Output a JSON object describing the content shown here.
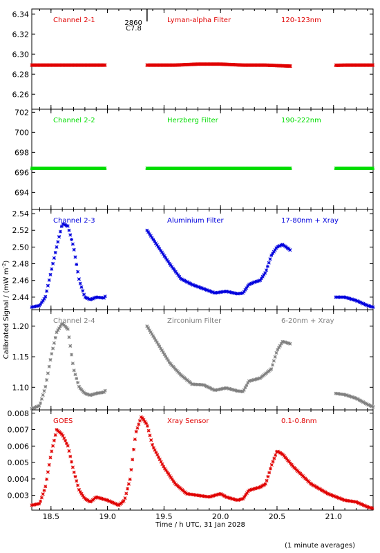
{
  "chart_data": {
    "type": "scatter",
    "x_label": "Time / h UTC, 31 Jan 2028",
    "y_label": "Calibrated Signal / (mW m",
    "y_label_sup": "-2",
    "y_label_end": ")",
    "footnote": "(1 minute averages)",
    "marker_note_1": "2860",
    "marker_note_2": "C7.8",
    "marker_time": 19.35,
    "xlim": [
      18.33,
      21.35
    ],
    "x_ticks": [
      18.5,
      19.0,
      19.5,
      20.0,
      20.5,
      21.0
    ],
    "x_tick_labels": [
      "18.5",
      "19.0",
      "19.5",
      "20.0",
      "20.5",
      "21.0"
    ],
    "panels": [
      {
        "channel": "Channel 2-1",
        "filter": "Lyman-alpha Filter",
        "band": "120-123nm",
        "color": "#e00000",
        "ylim": [
          6.245,
          6.345
        ],
        "y_ticks": [
          6.26,
          6.28,
          6.3,
          6.32,
          6.34
        ],
        "y_tick_labels": [
          "6.26",
          "6.28",
          "6.30",
          "6.32",
          "6.34"
        ],
        "segments": [
          [
            18.33,
            18.98
          ],
          [
            19.35,
            20.62
          ],
          [
            21.02,
            21.35
          ]
        ],
        "points": [
          [
            18.4,
            6.289
          ],
          [
            18.6,
            6.289
          ],
          [
            18.8,
            6.289
          ],
          [
            18.97,
            6.289
          ],
          [
            19.4,
            6.289
          ],
          [
            19.6,
            6.289
          ],
          [
            19.8,
            6.29
          ],
          [
            20.0,
            6.29
          ],
          [
            20.2,
            6.289
          ],
          [
            20.4,
            6.289
          ],
          [
            20.62,
            6.288
          ],
          [
            21.1,
            6.289
          ],
          [
            21.3,
            6.289
          ]
        ]
      },
      {
        "channel": "Channel 2-2",
        "filter": "Herzberg Filter",
        "band": "190-222nm",
        "color": "#00dd00",
        "ylim": [
          692.3,
          702.3
        ],
        "y_ticks": [
          694,
          696,
          698,
          700,
          702
        ],
        "y_tick_labels": [
          "694",
          "696",
          "698",
          "700",
          "702"
        ],
        "segments": [
          [
            18.33,
            18.98
          ],
          [
            19.35,
            20.62
          ],
          [
            21.02,
            21.35
          ]
        ],
        "points": [
          [
            18.4,
            696.4
          ],
          [
            18.7,
            696.4
          ],
          [
            18.97,
            696.4
          ],
          [
            19.4,
            696.4
          ],
          [
            19.8,
            696.4
          ],
          [
            20.2,
            696.4
          ],
          [
            20.62,
            696.4
          ],
          [
            21.1,
            696.4
          ],
          [
            21.3,
            696.4
          ]
        ]
      },
      {
        "channel": "Channel 2-3",
        "filter": "Aluminium Filter",
        "band": "17-80nm + Xray",
        "color": "#0000dd",
        "ylim": [
          2.425,
          2.545
        ],
        "y_ticks": [
          2.44,
          2.46,
          2.48,
          2.5,
          2.52,
          2.54
        ],
        "y_tick_labels": [
          "2.44",
          "2.46",
          "2.48",
          "2.50",
          "2.52",
          "2.54"
        ],
        "segments": [
          [
            18.33,
            18.98
          ],
          [
            19.35,
            20.62
          ],
          [
            21.02,
            21.35
          ]
        ],
        "points": [
          [
            18.33,
            2.428
          ],
          [
            18.4,
            2.43
          ],
          [
            18.45,
            2.44
          ],
          [
            18.5,
            2.47
          ],
          [
            18.55,
            2.5
          ],
          [
            18.6,
            2.528
          ],
          [
            18.65,
            2.525
          ],
          [
            18.7,
            2.5
          ],
          [
            18.75,
            2.46
          ],
          [
            18.8,
            2.44
          ],
          [
            18.85,
            2.437
          ],
          [
            18.9,
            2.44
          ],
          [
            18.97,
            2.439
          ],
          [
            19.35,
            2.52
          ],
          [
            19.45,
            2.5
          ],
          [
            19.55,
            2.48
          ],
          [
            19.65,
            2.462
          ],
          [
            19.75,
            2.455
          ],
          [
            19.85,
            2.45
          ],
          [
            19.95,
            2.445
          ],
          [
            20.05,
            2.447
          ],
          [
            20.15,
            2.444
          ],
          [
            20.2,
            2.445
          ],
          [
            20.25,
            2.455
          ],
          [
            20.3,
            2.458
          ],
          [
            20.35,
            2.46
          ],
          [
            20.4,
            2.47
          ],
          [
            20.45,
            2.49
          ],
          [
            20.5,
            2.5
          ],
          [
            20.55,
            2.503
          ],
          [
            20.6,
            2.498
          ],
          [
            20.62,
            2.496
          ],
          [
            21.02,
            2.44
          ],
          [
            21.1,
            2.44
          ],
          [
            21.2,
            2.436
          ],
          [
            21.3,
            2.43
          ],
          [
            21.35,
            2.428
          ]
        ]
      },
      {
        "channel": "Channel 2-4",
        "filter": "Zirconium Filter",
        "band": "6-20nm + Xray",
        "color": "#808080",
        "ylim": [
          1.063,
          1.227
        ],
        "y_ticks": [
          1.1,
          1.15,
          1.2
        ],
        "y_tick_labels": [
          "1.10",
          "1.15",
          "1.20"
        ],
        "segments": [
          [
            18.33,
            18.98
          ],
          [
            19.35,
            20.62
          ],
          [
            21.02,
            21.35
          ]
        ],
        "points": [
          [
            18.33,
            1.065
          ],
          [
            18.4,
            1.07
          ],
          [
            18.45,
            1.1
          ],
          [
            18.5,
            1.15
          ],
          [
            18.55,
            1.19
          ],
          [
            18.6,
            1.205
          ],
          [
            18.65,
            1.195
          ],
          [
            18.7,
            1.13
          ],
          [
            18.75,
            1.1
          ],
          [
            18.8,
            1.09
          ],
          [
            18.85,
            1.087
          ],
          [
            18.9,
            1.09
          ],
          [
            18.97,
            1.092
          ],
          [
            19.35,
            1.2
          ],
          [
            19.45,
            1.17
          ],
          [
            19.55,
            1.14
          ],
          [
            19.65,
            1.12
          ],
          [
            19.75,
            1.105
          ],
          [
            19.85,
            1.104
          ],
          [
            19.95,
            1.095
          ],
          [
            20.05,
            1.099
          ],
          [
            20.15,
            1.094
          ],
          [
            20.2,
            1.093
          ],
          [
            20.25,
            1.11
          ],
          [
            20.35,
            1.115
          ],
          [
            20.45,
            1.13
          ],
          [
            20.5,
            1.16
          ],
          [
            20.55,
            1.175
          ],
          [
            20.62,
            1.171
          ],
          [
            21.02,
            1.09
          ],
          [
            21.1,
            1.088
          ],
          [
            21.2,
            1.082
          ],
          [
            21.3,
            1.072
          ],
          [
            21.35,
            1.068
          ]
        ]
      },
      {
        "channel": "GOES",
        "filter": "Xray Sensor",
        "band": "0.1-0.8nm",
        "color": "#e00000",
        "ylim": [
          0.0021,
          0.0082
        ],
        "y_ticks": [
          0.003,
          0.004,
          0.005,
          0.006,
          0.007,
          0.008
        ],
        "y_tick_labels": [
          "0.003",
          "0.004",
          "0.005",
          "0.006",
          "0.007",
          "0.008"
        ],
        "segments": [
          [
            18.33,
            21.35
          ]
        ],
        "points": [
          [
            18.33,
            0.0024
          ],
          [
            18.4,
            0.0025
          ],
          [
            18.45,
            0.0035
          ],
          [
            18.5,
            0.0055
          ],
          [
            18.55,
            0.007
          ],
          [
            18.6,
            0.0067
          ],
          [
            18.65,
            0.006
          ],
          [
            18.7,
            0.0045
          ],
          [
            18.75,
            0.0033
          ],
          [
            18.8,
            0.0028
          ],
          [
            18.85,
            0.0026
          ],
          [
            18.9,
            0.0029
          ],
          [
            18.95,
            0.0028
          ],
          [
            19.0,
            0.0027
          ],
          [
            19.1,
            0.0024
          ],
          [
            19.15,
            0.0027
          ],
          [
            19.2,
            0.004
          ],
          [
            19.25,
            0.0068
          ],
          [
            19.3,
            0.0078
          ],
          [
            19.35,
            0.0073
          ],
          [
            19.4,
            0.006
          ],
          [
            19.5,
            0.0047
          ],
          [
            19.6,
            0.0037
          ],
          [
            19.7,
            0.0031
          ],
          [
            19.8,
            0.003
          ],
          [
            19.9,
            0.0029
          ],
          [
            20.0,
            0.0031
          ],
          [
            20.05,
            0.0029
          ],
          [
            20.15,
            0.0027
          ],
          [
            20.2,
            0.0028
          ],
          [
            20.25,
            0.0033
          ],
          [
            20.35,
            0.0035
          ],
          [
            20.4,
            0.0037
          ],
          [
            20.45,
            0.0048
          ],
          [
            20.5,
            0.0057
          ],
          [
            20.55,
            0.0055
          ],
          [
            20.65,
            0.0047
          ],
          [
            20.8,
            0.0037
          ],
          [
            20.95,
            0.0031
          ],
          [
            21.1,
            0.0027
          ],
          [
            21.2,
            0.0026
          ],
          [
            21.3,
            0.0023
          ],
          [
            21.35,
            0.0022
          ]
        ]
      }
    ]
  }
}
